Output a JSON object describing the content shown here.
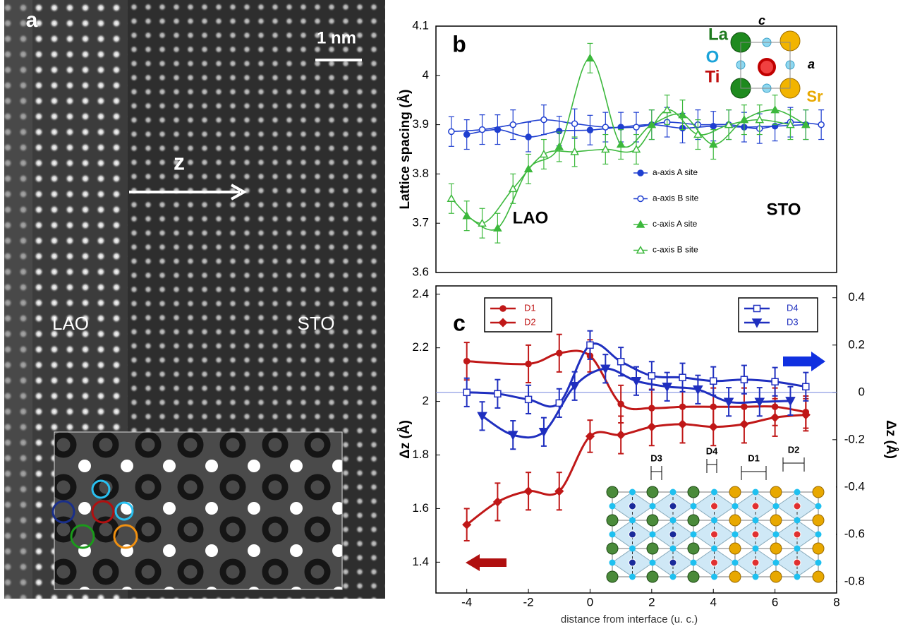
{
  "panel_a": {
    "label": "a",
    "scale_bar": "1 nm",
    "arrow_label": "z",
    "left_label": "LAO",
    "right_label": "STO"
  },
  "chart_data": [
    {
      "type": "line",
      "panel_label": "b",
      "ylabel": "Lattice spacing  (Å)",
      "xlim": [
        -5,
        8
      ],
      "ylim": [
        3.6,
        4.1
      ],
      "yticks": [
        3.6,
        3.7,
        3.8,
        3.9,
        4,
        4.1
      ],
      "annotations": [
        "LAO",
        "STO"
      ],
      "inset_labels": [
        {
          "text": "c",
          "color": "#000000"
        },
        {
          "text": "La",
          "color": "#1e7a1e"
        },
        {
          "text": "O",
          "color": "#1aa3d9"
        },
        {
          "text": "Ti",
          "color": "#c01010"
        },
        {
          "text": "a",
          "color": "#000000"
        },
        {
          "text": "Sr",
          "color": "#e8a800"
        }
      ],
      "series": [
        {
          "name": "a-axis A site",
          "color": "#1f3fd0",
          "marker": "circle",
          "x": [
            -4,
            -3,
            -2,
            -1,
            0,
            1,
            2,
            3,
            4,
            5,
            6,
            7
          ],
          "values": [
            3.88,
            3.89,
            3.875,
            3.887,
            3.889,
            3.895,
            3.9,
            3.893,
            3.897,
            3.895,
            3.897,
            3.9
          ],
          "errors": [
            0.03,
            0.03,
            0.03,
            0.03,
            0.03,
            0.03,
            0.03,
            0.03,
            0.03,
            0.03,
            0.03,
            0.03
          ]
        },
        {
          "name": "a-axis B site",
          "color": "#1f3fd0",
          "marker": "circle-open",
          "x": [
            -4.5,
            -3.5,
            -2.5,
            -1.5,
            -0.5,
            0.5,
            1.5,
            2.5,
            3.5,
            4.5,
            5.5,
            6.5,
            7.5
          ],
          "values": [
            3.886,
            3.89,
            3.9,
            3.91,
            3.902,
            3.895,
            3.895,
            3.905,
            3.9,
            3.9,
            3.892,
            3.905,
            3.9
          ],
          "errors": [
            0.03,
            0.03,
            0.03,
            0.03,
            0.03,
            0.03,
            0.03,
            0.03,
            0.03,
            0.03,
            0.03,
            0.03,
            0.03
          ]
        },
        {
          "name": "c-axis A site",
          "color": "#3cb83c",
          "marker": "triangle",
          "x": [
            -4,
            -3,
            -2,
            -1,
            0,
            1,
            2,
            3,
            4,
            5,
            6,
            7
          ],
          "values": [
            3.715,
            3.69,
            3.81,
            3.855,
            4.035,
            3.86,
            3.9,
            3.92,
            3.86,
            3.91,
            3.93,
            3.9
          ],
          "errors": [
            0.03,
            0.03,
            0.03,
            0.03,
            0.03,
            0.03,
            0.03,
            0.03,
            0.03,
            0.03,
            0.03,
            0.03
          ]
        },
        {
          "name": "c-axis B site",
          "color": "#3cb83c",
          "marker": "triangle-open",
          "x": [
            -4.5,
            -3.5,
            -2.5,
            -1.5,
            -0.5,
            0.5,
            1.5,
            2.5,
            3.5,
            4.5,
            5.5,
            6.5
          ],
          "values": [
            3.75,
            3.7,
            3.77,
            3.84,
            3.845,
            3.85,
            3.85,
            3.93,
            3.88,
            3.9,
            3.91,
            3.9
          ],
          "errors": [
            0.03,
            0.03,
            0.03,
            0.03,
            0.03,
            0.03,
            0.03,
            0.03,
            0.03,
            0.03,
            0.03,
            0.03
          ]
        }
      ]
    },
    {
      "type": "line",
      "panel_label": "c",
      "xlabel": "distance from interface (u. c.)",
      "ylabel": "Δz (Å)",
      "y2label": "Δz (Å)",
      "xlim": [
        -5,
        8
      ],
      "xticks": [
        -4,
        -2,
        0,
        2,
        4,
        6,
        8
      ],
      "ylim": [
        1.285,
        2.431
      ],
      "yticks": [
        1.4,
        1.6,
        1.8,
        2,
        2.2,
        2.4
      ],
      "y2lim": [
        -0.848,
        0.45
      ],
      "y2ticks": [
        0.4,
        0.2,
        0,
        -0.2,
        -0.4,
        -0.6,
        -0.8
      ],
      "reference_line": {
        "axis": "y2",
        "value": 0,
        "color": "#8090e0"
      },
      "inset_labels": [
        "D3",
        "D4",
        "D1",
        "D2"
      ],
      "series": [
        {
          "name": "D1",
          "color": "#c01818",
          "marker": "circle",
          "x": [
            -4,
            -2,
            -1,
            0,
            1,
            2,
            3,
            4,
            5,
            6,
            7
          ],
          "values": [
            2.15,
            2.14,
            2.18,
            2.17,
            1.99,
            1.975,
            1.98,
            1.98,
            1.98,
            1.98,
            1.96
          ],
          "errors": [
            0.07,
            0.07,
            0.07,
            0.06,
            0.07,
            0.07,
            0.07,
            0.07,
            0.07,
            0.07,
            0.06
          ]
        },
        {
          "name": "D2",
          "color": "#c01818",
          "marker": "diamond",
          "x": [
            -4,
            -3,
            -2,
            -1,
            0,
            1,
            2,
            3,
            4,
            5,
            6,
            7
          ],
          "values": [
            1.54,
            1.625,
            1.665,
            1.665,
            1.87,
            1.875,
            1.905,
            1.915,
            1.905,
            1.915,
            1.94,
            1.95
          ],
          "errors": [
            0.06,
            0.07,
            0.07,
            0.07,
            0.06,
            0.07,
            0.07,
            0.07,
            0.07,
            0.07,
            0.07,
            0.06
          ]
        },
        {
          "name": "D4",
          "color": "#1f2fbf",
          "marker": "square-open",
          "axis": "y2",
          "x": [
            -4,
            -3,
            -2,
            -1,
            0,
            1,
            2,
            3,
            4,
            5,
            6,
            7
          ],
          "values": [
            0,
            -0.006,
            -0.03,
            -0.045,
            0.2,
            0.13,
            0.07,
            0.063,
            0.048,
            0.054,
            0.045,
            0.024
          ],
          "errors": [
            0.06,
            0.06,
            0.06,
            0.06,
            0.06,
            0.06,
            0.06,
            0.06,
            0.06,
            0.06,
            0.06,
            0.06
          ]
        },
        {
          "name": "D3",
          "color": "#1f2fbf",
          "marker": "triangle-down",
          "axis": "y2",
          "x": [
            -3.5,
            -2.5,
            -1.5,
            -0.5,
            0.5,
            1.5,
            2.5,
            3.5,
            4.5,
            5.5,
            6.5
          ],
          "values": [
            -0.1,
            -0.18,
            -0.167,
            0.027,
            0.1,
            0.048,
            0.024,
            0.012,
            -0.04,
            -0.04,
            -0.036
          ],
          "errors": [
            0.06,
            0.06,
            0.06,
            0.06,
            0.06,
            0.06,
            0.06,
            0.06,
            0.06,
            0.06,
            0.06
          ]
        }
      ]
    }
  ]
}
